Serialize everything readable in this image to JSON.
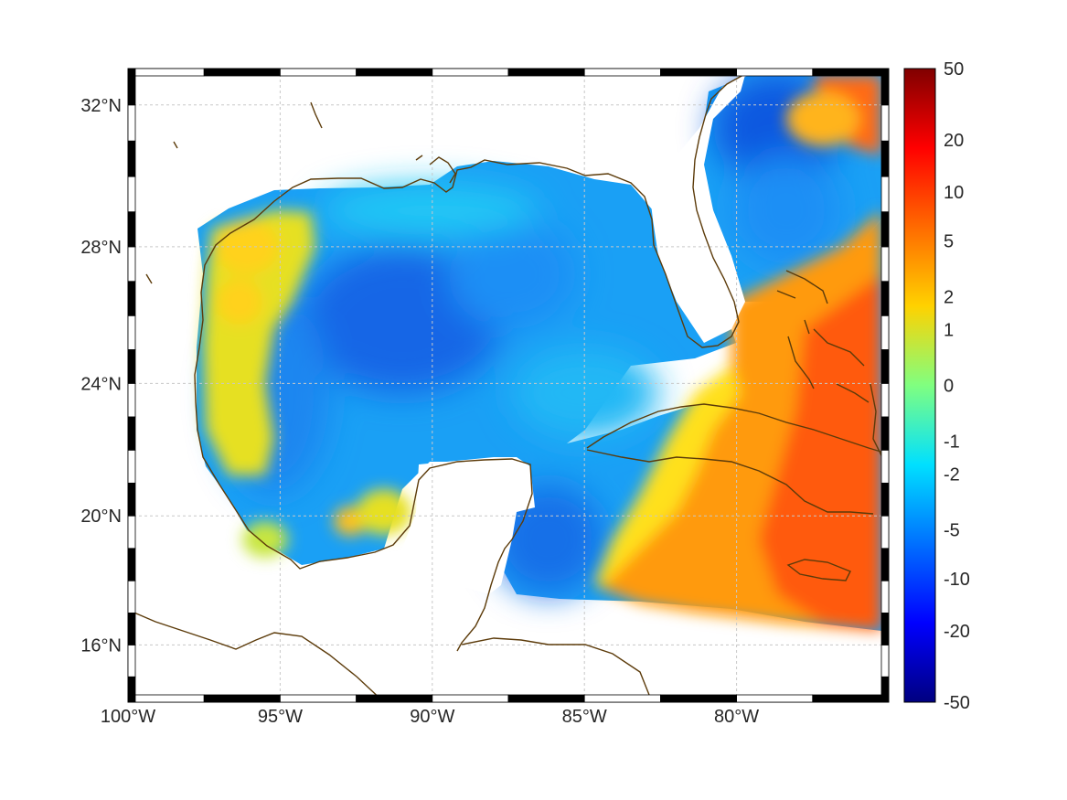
{
  "map": {
    "projection": "mercator",
    "lon_range": [
      -100,
      -75
    ],
    "lat_range": [
      14.2,
      33
    ],
    "grid": true,
    "lon_ticks": [
      {
        "value": -100,
        "label": "100°W"
      },
      {
        "value": -95,
        "label": "95°W"
      },
      {
        "value": -90,
        "label": "90°W"
      },
      {
        "value": -85,
        "label": "85°W"
      },
      {
        "value": -80,
        "label": "80°W"
      }
    ],
    "lat_ticks": [
      {
        "value": 32,
        "label": "32°N"
      },
      {
        "value": 28,
        "label": "28°N"
      },
      {
        "value": 24,
        "label": "24°N"
      },
      {
        "value": 20,
        "label": "20°N"
      },
      {
        "value": 16,
        "label": "16°N"
      }
    ],
    "colors": {
      "coastline": "#5c3b0a",
      "frame": "#000000",
      "grid": "#c8c8c8"
    }
  },
  "colorbar": {
    "scale": "symmetric-log",
    "placement": "right",
    "ticks": [
      "50",
      "20",
      "10",
      "5",
      "2",
      "1",
      "0",
      "-1",
      "-2",
      "-5",
      "-10",
      "-20",
      "-50"
    ],
    "colormap": [
      "#800000",
      "#ff0000",
      "#ff8000",
      "#ffff00",
      "#80ff80",
      "#00ffff",
      "#0080ff",
      "#0000ff",
      "#000080"
    ]
  }
}
